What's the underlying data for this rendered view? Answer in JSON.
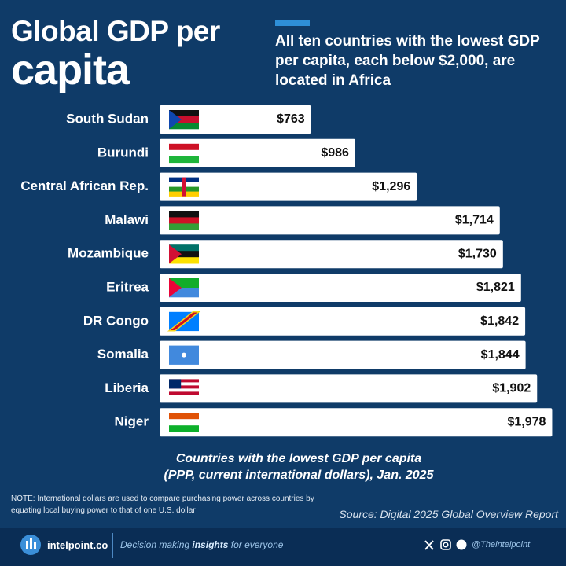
{
  "chart_data": {
    "type": "bar",
    "orientation": "horizontal",
    "title_lines": [
      "Global GDP per",
      "capita"
    ],
    "subtitle": "All ten countries with the lowest GDP per capita, each below $2,000, are located in Africa",
    "categories": [
      "South Sudan",
      "Burundi",
      "Central African Rep.",
      "Malawi",
      "Mozambique",
      "Eritrea",
      "DR Congo",
      "Somalia",
      "Liberia",
      "Niger"
    ],
    "values": [
      763,
      986,
      1296,
      1714,
      1730,
      1821,
      1842,
      1844,
      1902,
      1978
    ],
    "value_labels": [
      "$763",
      "$986",
      "$1,296",
      "$1,714",
      "$1,730",
      "$1,821",
      "$1,842",
      "$1,844",
      "$1,902",
      "$1,978"
    ],
    "color": "#ffffff",
    "caption_lines": [
      "Countries with the lowest GDP per capita",
      "(PPP, current international dollars), Jan. 2025"
    ],
    "note": "NOTE: International dollars are used to compare purchasing power across countries by equating local buying power to that of one U.S. dollar",
    "source": "Source: Digital 2025 Global Overview Report"
  },
  "footer": {
    "brand": "intelpoint.co",
    "tagline_parts": [
      "Decision making",
      "insights",
      "for everyone"
    ],
    "handle": "@Theintelpoint"
  }
}
